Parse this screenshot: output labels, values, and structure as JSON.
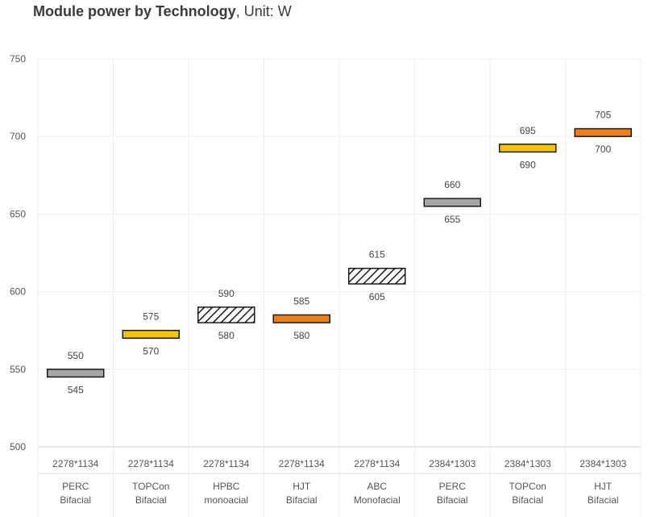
{
  "chart_data": {
    "type": "floating-bar",
    "title": "Module power by Technology",
    "unit_label": ", Unit: W",
    "ylim": [
      500,
      750
    ],
    "yticks": [
      500,
      550,
      600,
      650,
      700,
      750
    ],
    "grid": true,
    "categories": [
      {
        "size": "2278*1134",
        "tech": "PERC",
        "type": "Bifacial",
        "low": 545,
        "high": 550,
        "color": "#a6a6a6",
        "pattern": "solid"
      },
      {
        "size": "2278*1134",
        "tech": "TOPCon",
        "type": "Bifacial",
        "low": 570,
        "high": 575,
        "color": "#f5c20f",
        "pattern": "solid"
      },
      {
        "size": "2278*1134",
        "tech": "HPBC",
        "type": "monoacial",
        "low": 580,
        "high": 590,
        "color": "#ffffff",
        "pattern": "hatch"
      },
      {
        "size": "2278*1134",
        "tech": "HJT",
        "type": "Bifacial",
        "low": 580,
        "high": 585,
        "color": "#e8801f",
        "pattern": "solid"
      },
      {
        "size": "2278*1134",
        "tech": "ABC",
        "type": "Monofacial",
        "low": 605,
        "high": 615,
        "color": "#ffffff",
        "pattern": "hatch"
      },
      {
        "size": "2384*1303",
        "tech": "PERC",
        "type": "Bifacial",
        "low": 655,
        "high": 660,
        "color": "#a6a6a6",
        "pattern": "solid"
      },
      {
        "size": "2384*1303",
        "tech": "TOPCon",
        "type": "Bifacial",
        "low": 690,
        "high": 695,
        "color": "#f5c20f",
        "pattern": "solid"
      },
      {
        "size": "2384*1303",
        "tech": "HJT",
        "type": "Bifacial",
        "low": 700,
        "high": 705,
        "color": "#e8801f",
        "pattern": "solid"
      }
    ]
  }
}
